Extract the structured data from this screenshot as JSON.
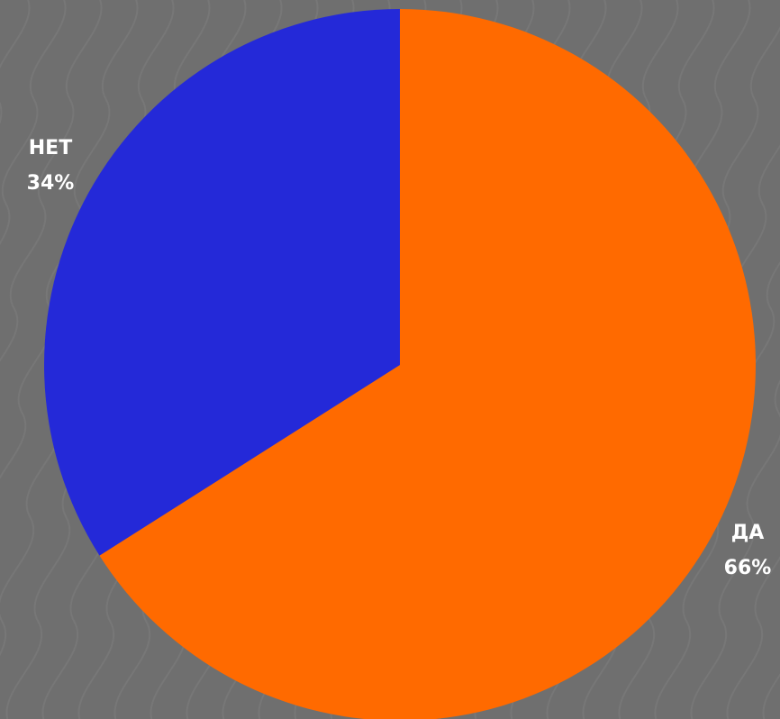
{
  "chart_data": {
    "type": "pie",
    "title": "",
    "start_angle_deg": 0,
    "direction": "clockwise",
    "slices": [
      {
        "label": "ДА",
        "value": 66,
        "value_label": "66%",
        "color": "#ff6a00"
      },
      {
        "label": "НЕТ",
        "value": 34,
        "value_label": "34%",
        "color": "#2429d8"
      }
    ]
  },
  "background": {
    "color": "#6f6f6f",
    "pattern": "wavy-lines",
    "pattern_color": "#7b7b7b"
  }
}
